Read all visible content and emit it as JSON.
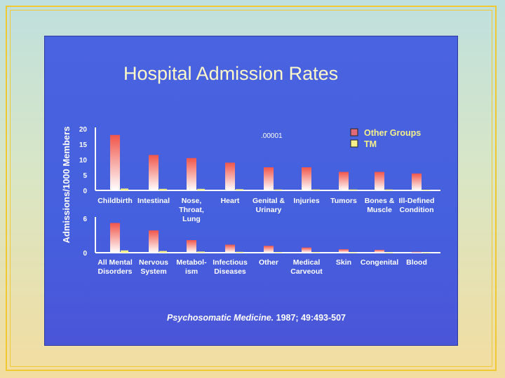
{
  "slide": {
    "title": "Hospital Admission Rates",
    "citation_journal": "Psychosomatic Medicine.",
    "citation_ref": "1987; 49:493-507"
  },
  "colors": {
    "panel": "#4a63e0",
    "bar_top": "#f0554a",
    "bar_bottom": "#ffffff",
    "title": "#fff8c8",
    "legend_other": "#e06a78",
    "legend_tm": "#f5f08a"
  },
  "chart_data": [
    {
      "type": "bar",
      "title": "Hospital Admission Rates",
      "ylabel": "Admissions/1000 Members",
      "ylim": [
        0,
        20
      ],
      "yticks": [
        "0",
        "5",
        "10",
        "15",
        "20"
      ],
      "annotation": ".00001",
      "legend": [
        "Other Groups",
        "TM"
      ],
      "categories": [
        [
          "Childbirth"
        ],
        [
          "Intestinal"
        ],
        [
          "Nose,",
          "Throat,",
          "Lung"
        ],
        [
          "Heart"
        ],
        [
          "Genital &",
          "Urinary"
        ],
        [
          "Injuries"
        ],
        [
          "Tumors"
        ],
        [
          "Bones &",
          "Muscle"
        ],
        [
          "Ill-Defined",
          "Condition"
        ]
      ],
      "series": [
        {
          "name": "Other Groups",
          "values": [
            18,
            11.5,
            10.5,
            9,
            7.5,
            7.5,
            6,
            6,
            5.5
          ]
        },
        {
          "name": "TM",
          "values": [
            0.6,
            0.5,
            0.5,
            0.4,
            0.3,
            0.3,
            0.3,
            0.3,
            0.2
          ]
        }
      ]
    },
    {
      "type": "bar",
      "ylim": [
        0,
        6
      ],
      "yticks": [
        "0",
        "6"
      ],
      "categories": [
        [
          "All Mental",
          "Disorders"
        ],
        [
          "Nervous",
          "System"
        ],
        [
          "Metabol-",
          "ism"
        ],
        [
          "Infectious",
          "Diseases"
        ],
        [
          "Other"
        ],
        [
          "Medical",
          "Carveout"
        ],
        [
          "Skin"
        ],
        [
          "Congenital"
        ],
        [
          "Blood"
        ]
      ],
      "series": [
        {
          "name": "Other Groups",
          "values": [
            5.2,
            3.9,
            2.2,
            1.4,
            1.2,
            0.9,
            0.6,
            0.5,
            0.15
          ]
        },
        {
          "name": "TM",
          "values": [
            0.4,
            0.3,
            0.2,
            0.15,
            0.1,
            0.1,
            0.05,
            0.05,
            0.03
          ]
        }
      ]
    }
  ]
}
